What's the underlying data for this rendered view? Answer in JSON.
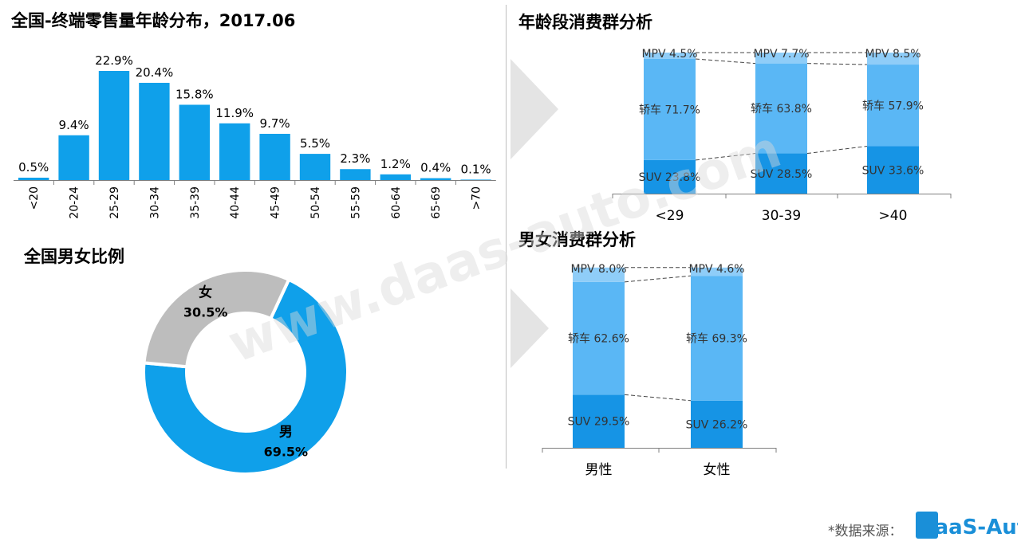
{
  "colors": {
    "bar": "#0fa0ea",
    "male": "#0fa0ea",
    "female": "#bdbdbd",
    "suv": "#1694e5",
    "sedan": "#5ab7f5",
    "mpv": "#8fcdf8",
    "axis": "#7f7f7f"
  },
  "watermark": "www.daas-auto.com",
  "source_label": "*数据来源：",
  "logo_text": "DaaS-Auto",
  "chart_data": [
    {
      "type": "bar",
      "title": "全国-终端零售量年龄分布，2017.06",
      "categories": [
        "<20",
        "20-24",
        "25-29",
        "30-34",
        "35-39",
        "40-44",
        "45-49",
        "50-54",
        "55-59",
        "60-64",
        "65-69",
        ">70"
      ],
      "values": [
        0.5,
        9.4,
        22.9,
        20.4,
        15.8,
        11.9,
        9.7,
        5.5,
        2.3,
        1.2,
        0.4,
        0.1
      ],
      "labels": [
        "0.5%",
        "9.4%",
        "22.9%",
        "20.4%",
        "15.8%",
        "11.9%",
        "9.7%",
        "5.5%",
        "2.3%",
        "1.2%",
        "0.4%",
        "0.1%"
      ],
      "ylim": [
        0,
        25
      ]
    },
    {
      "type": "pie",
      "title": "全国男女比例",
      "slices": [
        {
          "name": "男",
          "value": 69.5,
          "label": "69.5%"
        },
        {
          "name": "女",
          "value": 30.5,
          "label": "30.5%"
        }
      ]
    },
    {
      "type": "bar",
      "stacked": true,
      "title": "年龄段消费群分析",
      "categories": [
        "<29",
        "30-39",
        ">40"
      ],
      "series": [
        {
          "name": "SUV",
          "values": [
            23.8,
            28.5,
            33.6
          ],
          "labels": [
            "SUV 23.8%",
            "SUV 28.5%",
            "SUV 33.6%"
          ]
        },
        {
          "name": "轿车",
          "values": [
            71.7,
            63.8,
            57.9
          ],
          "labels": [
            "轿车 71.7%",
            "轿车 63.8%",
            "轿车 57.9%"
          ]
        },
        {
          "name": "MPV",
          "values": [
            4.5,
            7.7,
            8.5
          ],
          "labels": [
            "MPV 4.5%",
            "MPV 7.7%",
            "MPV 8.5%"
          ]
        }
      ]
    },
    {
      "type": "bar",
      "stacked": true,
      "title": "男女消费群分析",
      "categories": [
        "男性",
        "女性"
      ],
      "series": [
        {
          "name": "SUV",
          "values": [
            29.5,
            26.2
          ],
          "labels": [
            "SUV 29.5%",
            "SUV 26.2%"
          ]
        },
        {
          "name": "轿车",
          "values": [
            62.6,
            69.3
          ],
          "labels": [
            "轿车 62.6%",
            "轿车 69.3%"
          ]
        },
        {
          "name": "MPV",
          "values": [
            8.0,
            4.6
          ],
          "labels": [
            "MPV 8.0%",
            "MPV 4.6%"
          ]
        }
      ]
    }
  ]
}
